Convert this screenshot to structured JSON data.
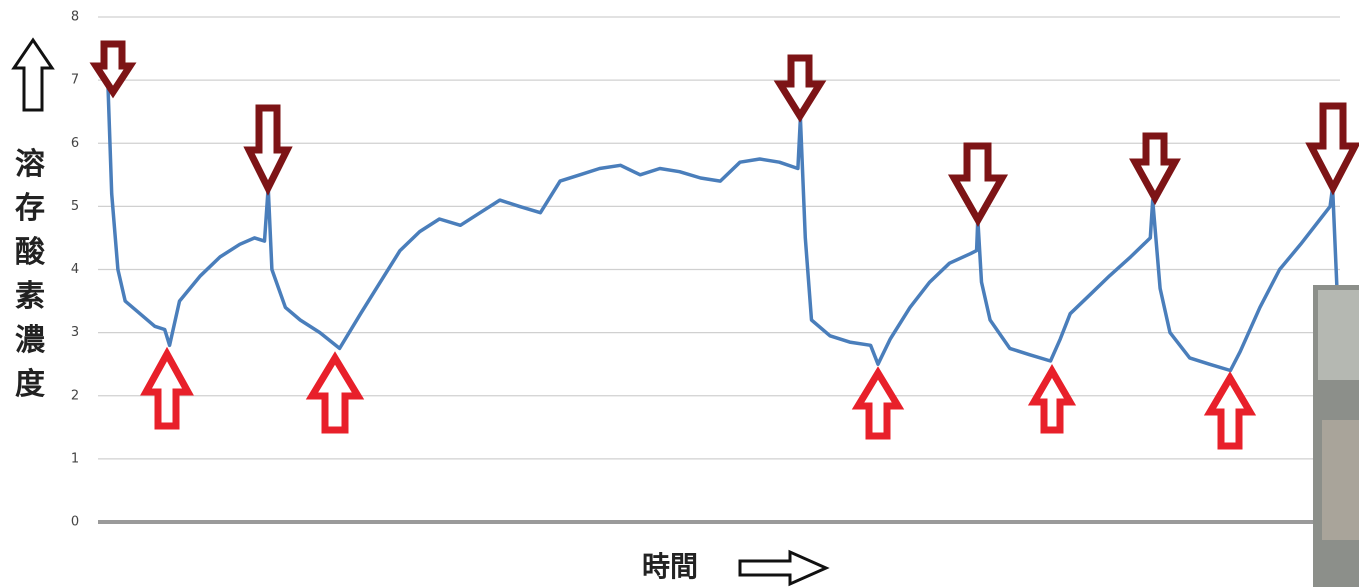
{
  "chart_data": {
    "type": "line",
    "y_label": "溶存酸素濃度",
    "x_label": "時間",
    "xlim": [
      0,
      100
    ],
    "ylim": [
      0,
      8
    ],
    "yticks": [
      0,
      1,
      2,
      3,
      4,
      5,
      6,
      7,
      8
    ],
    "grid": true,
    "series": [
      {
        "color": "#4a7ebb",
        "x": [
          0,
          0.3,
          0.8,
          1.4,
          2.6,
          3.8,
          4.6,
          5.0,
          5.8,
          7.5,
          9.1,
          10.7,
          11.9,
          12.7,
          13.0,
          13.3,
          14.4,
          15.6,
          17.2,
          18.8,
          20.5,
          22.1,
          23.7,
          25.3,
          26.9,
          28.6,
          30.2,
          31.8,
          33.4,
          35.1,
          36.7,
          38.3,
          39.9,
          41.6,
          43.2,
          44.8,
          46.4,
          48.1,
          49.7,
          51.3,
          52.9,
          54.5,
          56.0,
          56.2,
          56.6,
          57.1,
          58.6,
          60.2,
          61.9,
          62.5,
          63.5,
          65.1,
          66.7,
          68.3,
          70.0,
          70.5,
          70.6,
          70.9,
          71.6,
          73.2,
          74.8,
          76.5,
          77.3,
          78.1,
          79.7,
          81.3,
          83.0,
          84.6,
          84.8,
          85.4,
          86.2,
          87.8,
          89.4,
          91.1,
          91.9,
          93.5,
          95.1,
          96.8,
          98.4,
          99.2,
          99.4,
          99.8
        ],
        "values": [
          6.9,
          5.2,
          4.0,
          3.5,
          3.3,
          3.1,
          3.05,
          2.8,
          3.5,
          3.9,
          4.2,
          4.4,
          4.5,
          4.45,
          5.3,
          4.0,
          3.4,
          3.2,
          3.0,
          2.75,
          3.3,
          3.8,
          4.3,
          4.6,
          4.8,
          4.7,
          4.9,
          5.1,
          5.0,
          4.9,
          5.4,
          5.5,
          5.6,
          5.65,
          5.5,
          5.6,
          5.55,
          5.45,
          5.4,
          5.7,
          5.75,
          5.7,
          5.6,
          6.4,
          4.5,
          3.2,
          2.95,
          2.85,
          2.8,
          2.5,
          2.9,
          3.4,
          3.8,
          4.1,
          4.25,
          4.3,
          4.8,
          3.8,
          3.2,
          2.75,
          2.65,
          2.55,
          2.9,
          3.3,
          3.6,
          3.9,
          4.2,
          4.5,
          5.1,
          3.7,
          3.0,
          2.6,
          2.5,
          2.4,
          2.7,
          3.4,
          4.0,
          4.4,
          4.8,
          5.0,
          5.3,
          3.5
        ]
      }
    ]
  }
}
